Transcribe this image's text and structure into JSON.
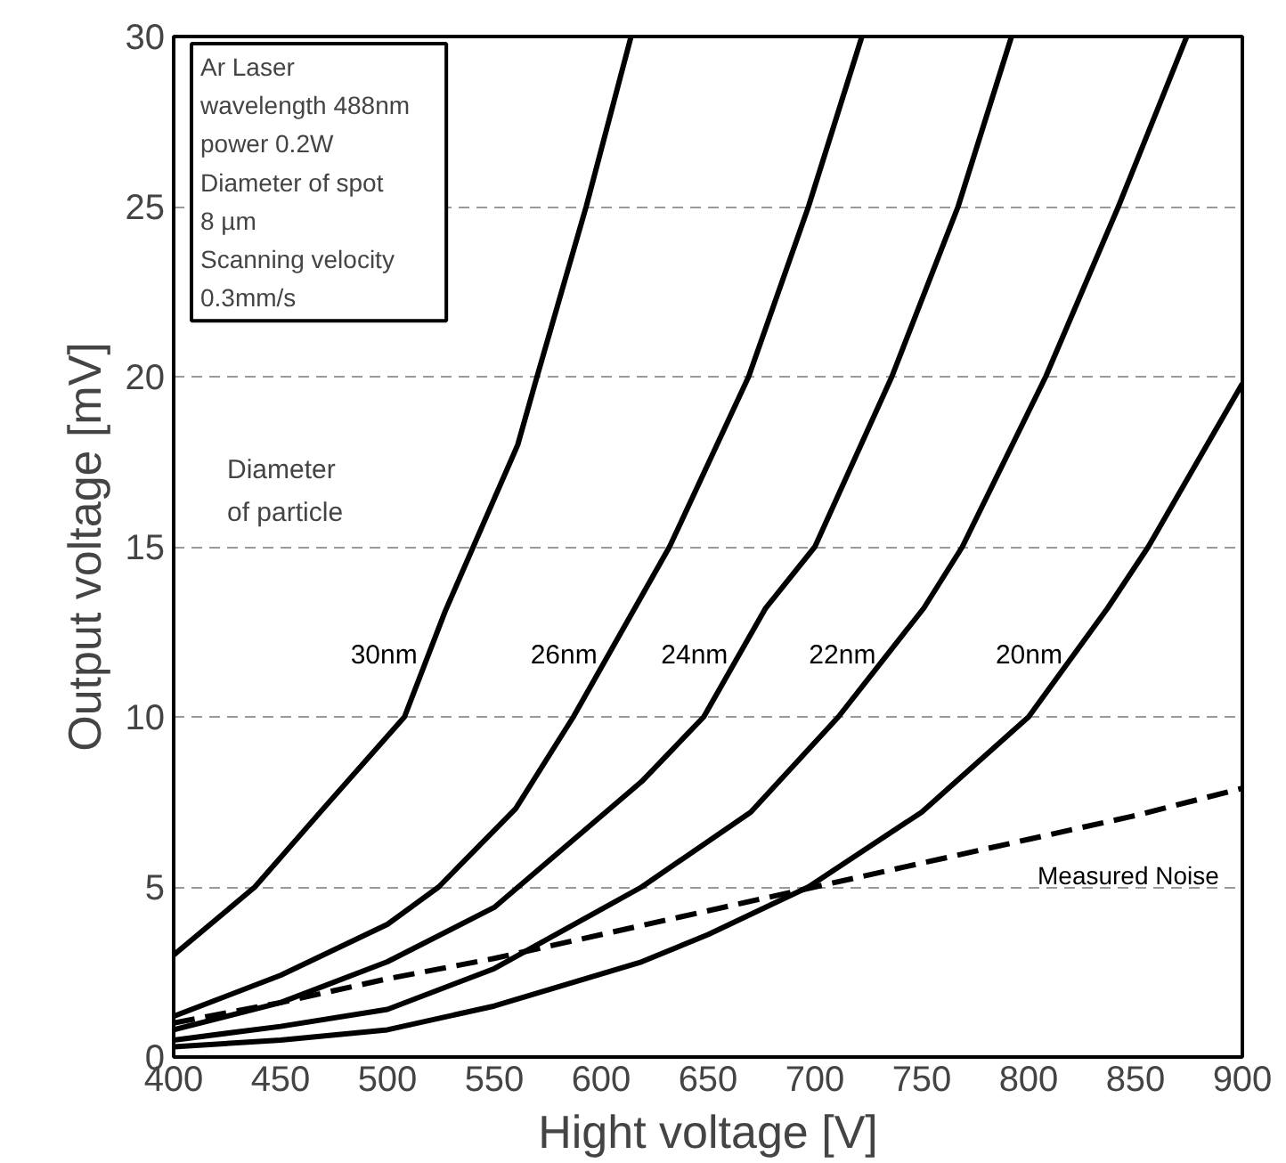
{
  "chart_data": {
    "type": "line",
    "xlabel": "Hight voltage [V]",
    "ylabel": "Output voltage [mV]",
    "xlim": [
      400,
      900
    ],
    "ylim": [
      0,
      30
    ],
    "xticks": [
      400,
      450,
      500,
      550,
      600,
      650,
      700,
      750,
      800,
      850,
      900
    ],
    "yticks": [
      0,
      5,
      10,
      15,
      20,
      25,
      30
    ],
    "grid": "y",
    "legend": false,
    "marker": "none",
    "line_style": "solid",
    "series": [
      {
        "name": "30nm",
        "color": "#000000",
        "x": [
          400,
          438,
          470,
          508,
          527,
          561,
          570,
          593,
          614
        ],
        "values": [
          3.0,
          5,
          7.3,
          10,
          13.1,
          18,
          20,
          25,
          30
        ]
      },
      {
        "name": "26nm",
        "color": "#000000",
        "x": [
          400,
          450,
          500,
          524,
          560,
          587,
          632,
          669,
          697,
          722
        ],
        "values": [
          1.2,
          2.4,
          3.9,
          5,
          7.3,
          10,
          15,
          20,
          25,
          30
        ]
      },
      {
        "name": "24nm",
        "color": "#000000",
        "x": [
          400,
          450,
          500,
          550,
          619,
          648,
          677,
          700,
          736,
          767,
          792
        ],
        "values": [
          0.8,
          1.6,
          2.8,
          4.4,
          8.1,
          10,
          13.2,
          15,
          20,
          25,
          30
        ]
      },
      {
        "name": "22nm",
        "color": "#000000",
        "x": [
          400,
          450,
          500,
          550,
          619,
          670,
          711,
          751,
          769,
          808,
          842,
          874
        ],
        "values": [
          0.5,
          0.9,
          1.4,
          2.6,
          5,
          7.2,
          10,
          13.2,
          15,
          20,
          25,
          30
        ]
      },
      {
        "name": "20nm",
        "color": "#000000",
        "x": [
          400,
          450,
          500,
          550,
          619,
          650,
          697,
          750,
          800,
          837,
          856,
          900
        ],
        "values": [
          0.3,
          0.5,
          0.8,
          1.5,
          2.8,
          3.6,
          5,
          7.2,
          10,
          13.2,
          15,
          19.8
        ]
      },
      {
        "name": "Measured Noise",
        "color": "#000000",
        "line_style": "dashed",
        "x": [
          400,
          450,
          500,
          550,
          600,
          650,
          700,
          750,
          800,
          850,
          900
        ],
        "values": [
          1.0,
          1.6,
          2.3,
          2.9,
          3.6,
          4.3,
          5.0,
          5.7,
          6.4,
          7.1,
          7.9
        ]
      }
    ],
    "annotations": [
      "Ar Laser\n   wavelength  488nm\n   power          0.2W\nDiameter of spot\n                        8 µm\nScanning velocity\n                  0.3mm/s",
      "Diameter\nof particle"
    ]
  }
}
